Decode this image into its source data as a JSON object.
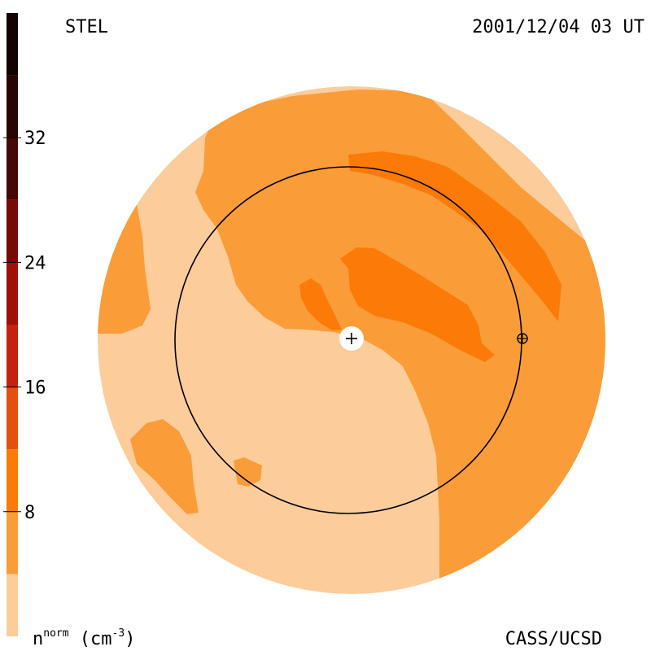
{
  "header": {
    "left_label": "STEL",
    "right_label": "2001/12/04 03 UT"
  },
  "footer": {
    "unit_base": "n",
    "unit_sup": "norm",
    "unit_paren_open": " (cm",
    "unit_exp": "-3",
    "unit_paren_close": ")",
    "credit": "CASS/UCSD"
  },
  "chart_data": {
    "type": "heatmap",
    "colorbar": {
      "min": 0,
      "max": 40,
      "ticks": [
        8,
        16,
        24,
        32
      ],
      "tick_labels": [
        "8",
        "16",
        "24",
        "32"
      ],
      "bands": [
        {
          "from": 0,
          "to": 4,
          "color": "#fccc9a"
        },
        {
          "from": 4,
          "to": 8,
          "color": "#fa9c38"
        },
        {
          "from": 8,
          "to": 12,
          "color": "#fc7a08"
        },
        {
          "from": 12,
          "to": 16,
          "color": "#e45010"
        },
        {
          "from": 16,
          "to": 20,
          "color": "#c8200e"
        },
        {
          "from": 20,
          "to": 24,
          "color": "#a01008"
        },
        {
          "from": 24,
          "to": 28,
          "color": "#780a06"
        },
        {
          "from": 28,
          "to": 32,
          "color": "#460804"
        },
        {
          "from": 32,
          "to": 36,
          "color": "#2a0402"
        },
        {
          "from": 36,
          "to": 40,
          "color": "#140202"
        }
      ]
    },
    "map_levels": {
      "background": "#fccc9a",
      "level1": "#fa9c38",
      "level2": "#fc7a08"
    },
    "markers": {
      "sun": "+",
      "earth": "⊕"
    }
  }
}
